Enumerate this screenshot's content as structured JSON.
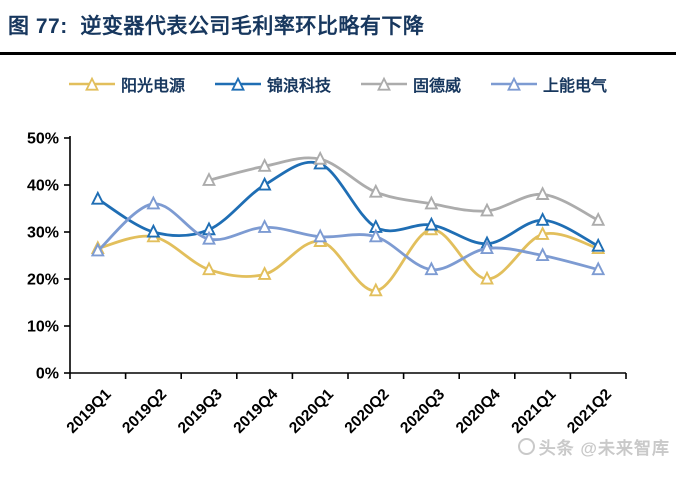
{
  "header": {
    "title": "图 77:  逆变器代表公司毛利率环比略有下降"
  },
  "colors": {
    "title_navy": "#17375E",
    "legend_text": "#17375E",
    "axis_black": "#000000",
    "divider_black": "#000000",
    "watermark_gray": "#C9C9C9",
    "marker_fill": "#FFFFFF"
  },
  "watermark": {
    "text": "头条 @未来智库"
  },
  "chart_data": {
    "type": "line",
    "title": "逆变器代表公司毛利率环比略有下降",
    "xlabel": "",
    "ylabel": "",
    "categories": [
      "2019Q1",
      "2019Q2",
      "2019Q3",
      "2019Q4",
      "2020Q1",
      "2020Q2",
      "2020Q3",
      "2020Q4",
      "2021Q1",
      "2021Q2"
    ],
    "series": [
      {
        "name": "阳光电源",
        "color": "#E2BF5C",
        "values": [
          26.5,
          29,
          22,
          21,
          28,
          17.5,
          30.5,
          20,
          29.5,
          26.5
        ]
      },
      {
        "name": "锦浪科技",
        "color": "#1F6EB4",
        "values": [
          37,
          30,
          30.5,
          40,
          44.5,
          31,
          31.5,
          27.5,
          32.5,
          27
        ]
      },
      {
        "name": "固德威",
        "color": "#ACACAC",
        "values": [
          null,
          null,
          41,
          44,
          45.5,
          38.5,
          36,
          34.5,
          38,
          32.5
        ]
      },
      {
        "name": "上能电气",
        "color": "#7D9BD2",
        "values": [
          26,
          36,
          28.5,
          31,
          29,
          29,
          22,
          26.5,
          25,
          22
        ]
      }
    ],
    "ylim": [
      0,
      50
    ],
    "y_ticks": [
      "0%",
      "10%",
      "20%",
      "30%",
      "40%",
      "50%"
    ],
    "y_tick_step": 10,
    "grid": false,
    "legend_position": "top",
    "marker": "triangle-white-fill",
    "line_style": "smooth"
  }
}
